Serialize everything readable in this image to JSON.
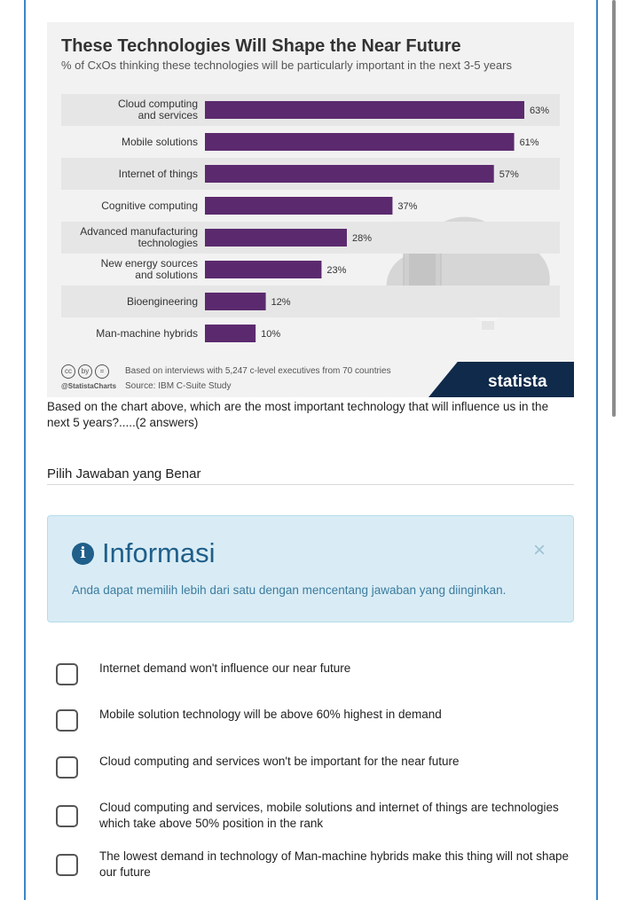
{
  "chart_data": {
    "type": "bar",
    "orientation": "horizontal",
    "title": "These Technologies Will Shape the Near Future",
    "subtitle": "% of CxOs thinking these technologies will be particularly important in the next 3-5 years",
    "categories": [
      [
        "Cloud computing",
        "and services"
      ],
      [
        "Mobile solutions"
      ],
      [
        "Internet of things"
      ],
      [
        "Cognitive computing"
      ],
      [
        "Advanced manufacturing",
        "technologies"
      ],
      [
        "New energy sources",
        "and solutions"
      ],
      [
        "Bioengineering"
      ],
      [
        "Man-machine hybrids"
      ]
    ],
    "values": [
      63,
      61,
      57,
      37,
      28,
      23,
      12,
      10
    ],
    "value_labels": [
      "63%",
      "61%",
      "57%",
      "37%",
      "28%",
      "23%",
      "12%",
      "10%"
    ],
    "xlim": [
      0,
      63
    ],
    "bar_color": "#5b2a6e",
    "band_color": "#e6e6e6",
    "grid": false,
    "legend": "none"
  },
  "chart_footer": {
    "note": "Based on interviews with 5,247 c-level executives from 70 countries",
    "source": "Source: IBM C-Suite Study",
    "handle": "@StatistaCharts",
    "logo": "statista",
    "cc_icons": [
      "cc",
      "by",
      "="
    ]
  },
  "question": "Based on the chart above, which are the most important technology that will influence us in the next 5 years?.....(2 answers)",
  "answer_label": "Pilih Jawaban yang Benar",
  "info": {
    "title": "Informasi",
    "text": "Anda dapat memilih lebih dari satu dengan mencentang jawaban yang diinginkan.",
    "close": "×"
  },
  "options": [
    "Internet demand won't influence our near future",
    "Mobile solution technology will be above 60% highest in demand",
    "Cloud computing and services won't be important for the near future",
    "Cloud computing and services, mobile solutions and internet of things are technologies which take above 50% position in the rank",
    "The lowest demand in technology of Man-machine hybrids make this thing will not shape our future"
  ],
  "colors": {
    "frame": "#3a86c8",
    "info_bg": "#d9ecf5",
    "info_text": "#3c7ca0",
    "info_title": "#1f5f8a"
  }
}
